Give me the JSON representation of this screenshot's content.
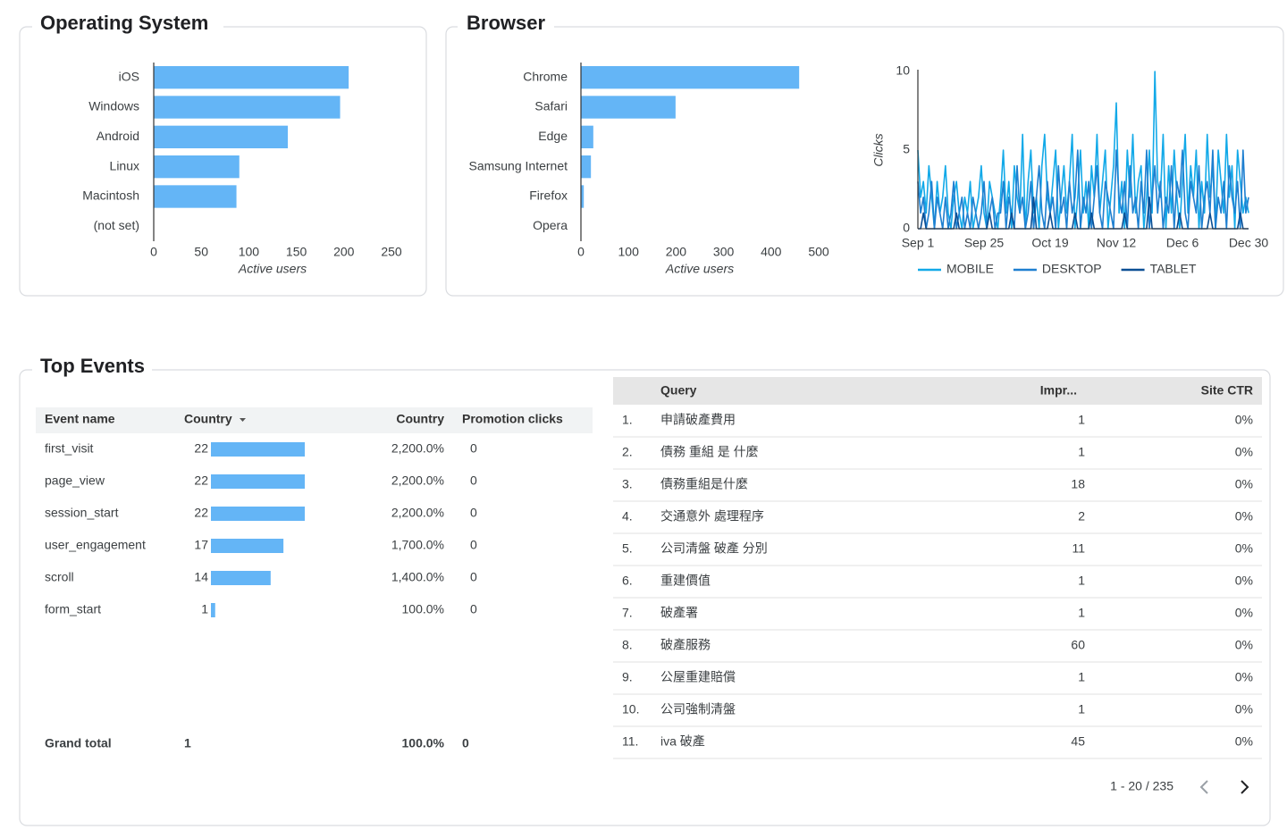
{
  "chart_data": [
    {
      "type": "hbar",
      "title": "Operating System",
      "categories": [
        "iOS",
        "Windows",
        "Android",
        "Linux",
        "Macintosh",
        "(not set)"
      ],
      "values": [
        205,
        196,
        141,
        90,
        87,
        0
      ],
      "color": "#64b5f6",
      "xlim": [
        0,
        250
      ],
      "xticks": [
        0,
        50,
        100,
        150,
        200,
        250
      ],
      "x_label": "Active users"
    },
    {
      "type": "hbar",
      "title": "Browser",
      "categories": [
        "Chrome",
        "Safari",
        "Edge",
        "Samsung Internet",
        "Firefox",
        "Opera"
      ],
      "values": [
        459,
        199,
        26,
        21,
        6,
        0
      ],
      "color": "#64b5f6",
      "xlim": [
        0,
        500
      ],
      "xticks": [
        0,
        100,
        200,
        300,
        400,
        500
      ],
      "x_label": "Active users"
    },
    {
      "type": "line",
      "y_label": "Clicks",
      "legend": "bottom",
      "categories": [
        "Sep 1",
        null,
        null,
        null,
        null,
        null,
        null,
        null,
        null,
        null,
        null,
        null,
        null,
        null,
        null,
        null,
        null,
        null,
        null,
        null,
        null,
        null,
        null,
        null,
        "Sep 25",
        null,
        null,
        null,
        null,
        null,
        null,
        null,
        null,
        null,
        null,
        null,
        null,
        null,
        null,
        null,
        null,
        null,
        null,
        null,
        null,
        null,
        null,
        null,
        "Oct 19",
        null,
        null,
        null,
        null,
        null,
        null,
        null,
        null,
        null,
        null,
        null,
        null,
        null,
        null,
        null,
        null,
        null,
        null,
        null,
        null,
        null,
        null,
        null,
        "Nov 12",
        null,
        null,
        null,
        null,
        null,
        null,
        null,
        null,
        null,
        null,
        null,
        null,
        null,
        null,
        null,
        null,
        null,
        null,
        null,
        null,
        null,
        null,
        null,
        "Dec 6",
        null,
        null,
        null,
        null,
        null,
        null,
        null,
        null,
        null,
        null,
        null,
        null,
        null,
        null,
        null,
        null,
        null,
        null,
        null,
        null,
        null,
        null,
        null,
        "Dec 30"
      ],
      "ylim": [
        0,
        10
      ],
      "yticks": [
        0,
        5,
        10
      ],
      "series": [
        {
          "name": "MOBILE",
          "color": "#12a9e8",
          "values": [
            5,
            2,
            3,
            1,
            4,
            2,
            0,
            3,
            1,
            2,
            4,
            1,
            0,
            2,
            3,
            1,
            0,
            2,
            1,
            3,
            0,
            1,
            2,
            4,
            1,
            0,
            3,
            2,
            1,
            0,
            2,
            5,
            1,
            3,
            0,
            4,
            2,
            1,
            6,
            0,
            3,
            5,
            1,
            2,
            0,
            4,
            6,
            2,
            1,
            3,
            5,
            0,
            2,
            4,
            1,
            3,
            6,
            0,
            2,
            5,
            1,
            3,
            0,
            4,
            2,
            6,
            1,
            3,
            5,
            0,
            2,
            4,
            8,
            1,
            3,
            0,
            5,
            2,
            6,
            1,
            3,
            4,
            0,
            2,
            5,
            1,
            10,
            3,
            2,
            6,
            0,
            4,
            1,
            5,
            2,
            0,
            3,
            6,
            1,
            4,
            2,
            5,
            0,
            3,
            1,
            6,
            2,
            4,
            0,
            5,
            3,
            1,
            6,
            2,
            4,
            0,
            5,
            3,
            1,
            2,
            1
          ]
        },
        {
          "name": "DESKTOP",
          "color": "#1e7fd0",
          "values": [
            3,
            1,
            2,
            0,
            1,
            3,
            0,
            2,
            1,
            0,
            2,
            0,
            1,
            3,
            0,
            1,
            2,
            0,
            1,
            0,
            2,
            1,
            0,
            1,
            3,
            0,
            1,
            2,
            0,
            1,
            1,
            3,
            0,
            2,
            1,
            0,
            4,
            1,
            2,
            0,
            1,
            3,
            0,
            2,
            4,
            1,
            0,
            3,
            1,
            2,
            0,
            4,
            1,
            2,
            0,
            3,
            1,
            2,
            5,
            0,
            2,
            1,
            3,
            0,
            2,
            4,
            1,
            0,
            3,
            2,
            1,
            0,
            5,
            2,
            1,
            3,
            0,
            4,
            1,
            2,
            0,
            3,
            1,
            5,
            0,
            2,
            4,
            1,
            3,
            0,
            2,
            1,
            4,
            0,
            3,
            2,
            5,
            1,
            0,
            3,
            2,
            1,
            4,
            0,
            2,
            3,
            1,
            5,
            0,
            2,
            1,
            3,
            0,
            4,
            2,
            1,
            3,
            0,
            5,
            1,
            2
          ]
        },
        {
          "name": "TABLET",
          "color": "#0b4f94",
          "values": [
            0,
            0,
            1,
            0,
            0,
            0,
            0,
            0,
            0,
            0,
            0,
            0,
            0,
            0,
            1,
            0,
            0,
            0,
            0,
            0,
            0,
            0,
            0,
            0,
            0,
            0,
            1,
            0,
            0,
            0,
            0,
            0,
            0,
            0,
            1,
            0,
            0,
            0,
            0,
            0,
            0,
            0,
            2,
            0,
            0,
            0,
            0,
            0,
            1,
            0,
            0,
            0,
            0,
            0,
            0,
            0,
            0,
            1,
            0,
            0,
            0,
            0,
            0,
            1,
            0,
            0,
            0,
            0,
            0,
            0,
            0,
            0,
            0,
            0,
            0,
            1,
            0,
            0,
            0,
            0,
            0,
            0,
            0,
            0,
            2,
            0,
            0,
            0,
            0,
            0,
            0,
            0,
            0,
            0,
            0,
            1,
            0,
            0,
            0,
            0,
            0,
            0,
            0,
            0,
            0,
            0,
            1,
            0,
            0,
            0,
            0,
            0,
            0,
            0,
            0,
            0,
            0,
            1,
            0,
            0,
            0
          ]
        }
      ]
    }
  ],
  "top_events": {
    "title": "Top Events",
    "columns": [
      "Event name",
      "Country",
      "Country",
      "Promotion clicks"
    ],
    "bar_column": 1,
    "bar_color": "#64b5f6",
    "rows": [
      [
        "first_visit",
        22,
        "2,200.0%",
        0
      ],
      [
        "page_view",
        22,
        "2,200.0%",
        0
      ],
      [
        "session_start",
        22,
        "2,200.0%",
        0
      ],
      [
        "user_engagement",
        17,
        "1,700.0%",
        0
      ],
      [
        "scroll",
        14,
        "1,400.0%",
        0
      ],
      [
        "form_start",
        1,
        "100.0%",
        0
      ]
    ],
    "total": [
      "Grand total",
      1,
      "100.0%",
      0
    ]
  },
  "queries": {
    "columns": [
      "Query",
      "Impr...",
      "Site CTR"
    ],
    "rows": [
      [
        "1.",
        "申請破產費用",
        1,
        "0%"
      ],
      [
        "2.",
        "債務 重組 是 什麼",
        1,
        "0%"
      ],
      [
        "3.",
        "債務重組是什麼",
        18,
        "0%"
      ],
      [
        "4.",
        "交通意外 處理程序",
        2,
        "0%"
      ],
      [
        "5.",
        "公司清盤 破產 分別",
        11,
        "0%"
      ],
      [
        "6.",
        "重建價值",
        1,
        "0%"
      ],
      [
        "7.",
        "破產署",
        1,
        "0%"
      ],
      [
        "8.",
        "破產服務",
        60,
        "0%"
      ],
      [
        "9.",
        "公屋重建賠償",
        1,
        "0%"
      ],
      [
        "10.",
        "公司強制清盤",
        1,
        "0%"
      ],
      [
        "11.",
        "iva 破產",
        45,
        "0%"
      ]
    ],
    "pagination": "1 - 20 / 235"
  }
}
